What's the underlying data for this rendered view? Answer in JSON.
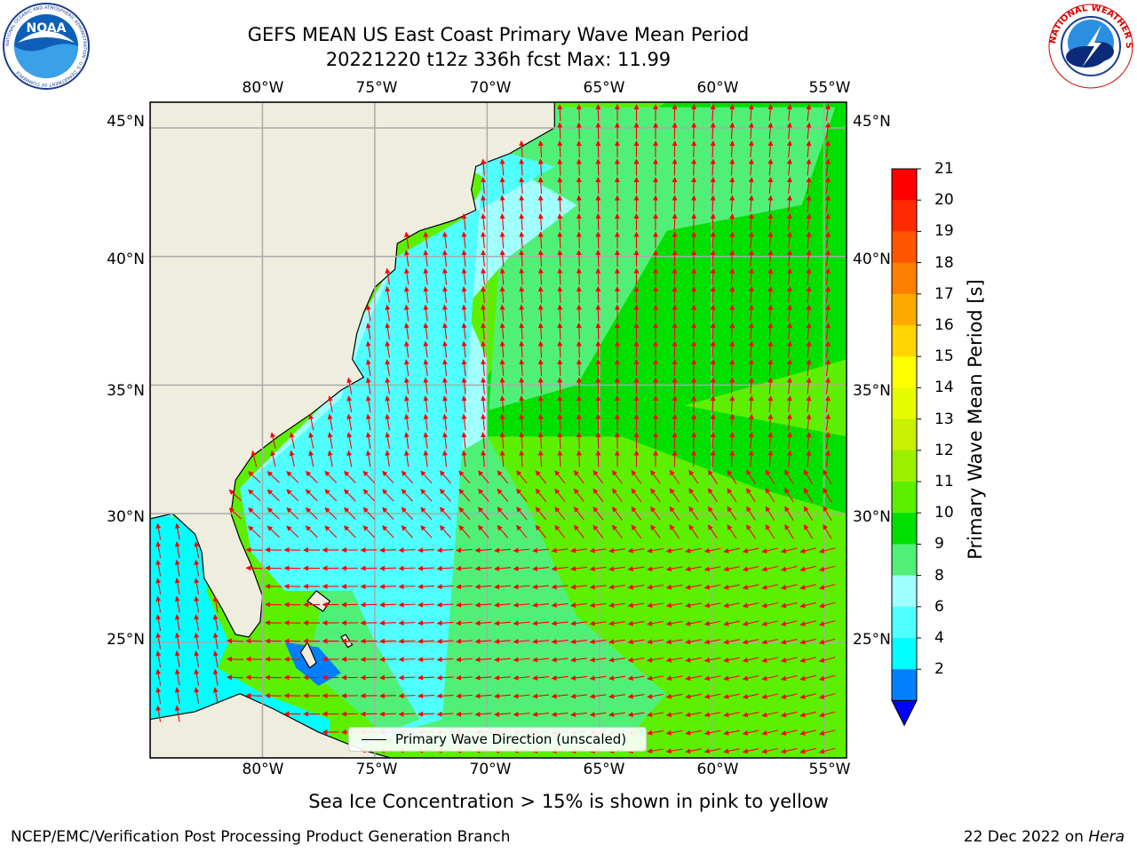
{
  "header": {
    "title_line1": "GEFS MEAN US East Coast Primary Wave Mean Period",
    "title_line2": "20221220 t12z 336h fcst   Max: 11.99"
  },
  "logos": {
    "left_text": "NOAA",
    "left_ring": "NATIONAL OCEANIC AND ATMOSPHERIC ADMINISTRATION · U.S. DEPARTMENT OF COMMERCE",
    "right_ring": "NATIONAL WEATHER SERVICE"
  },
  "map": {
    "lon_labels": [
      "80°W",
      "75°W",
      "70°W",
      "65°W",
      "60°W",
      "55°W"
    ],
    "lat_labels": [
      "45°N",
      "40°N",
      "35°N",
      "30°N",
      "25°N"
    ],
    "lon_range": [
      -85,
      -54
    ],
    "lat_range": [
      20.5,
      46
    ],
    "colors": {
      "land": "#efedde",
      "vector": "#ff0000",
      "grid": "#aaaaaa",
      "coast": "#000000"
    },
    "legend_label": "Primary Wave Direction (unscaled)"
  },
  "colorbar": {
    "title": "Primary Wave Mean Period [s]",
    "ticks": [
      "21",
      "20",
      "19",
      "18",
      "17",
      "16",
      "15",
      "14",
      "13",
      "12",
      "11",
      "10",
      "9",
      "8",
      "6",
      "4",
      "2"
    ],
    "colors_top_to_bottom": [
      "#ff0000",
      "#ff2a00",
      "#ff5500",
      "#ff8000",
      "#ffaa00",
      "#ffd400",
      "#ffff00",
      "#e6fa00",
      "#c8f000",
      "#9bf000",
      "#5cf000",
      "#00e000",
      "#50f078",
      "#a0ffff",
      "#50ffff",
      "#00ffff",
      "#0080ff"
    ],
    "extend_color": "#0000ff"
  },
  "notes": {
    "sea_ice": "Sea Ice Concentration > 15% is shown in pink to yellow",
    "credit": "NCEP/EMC/Verification Post Processing Product Generation Branch",
    "date": "22 Dec 2022 on",
    "machine": "Hera"
  }
}
